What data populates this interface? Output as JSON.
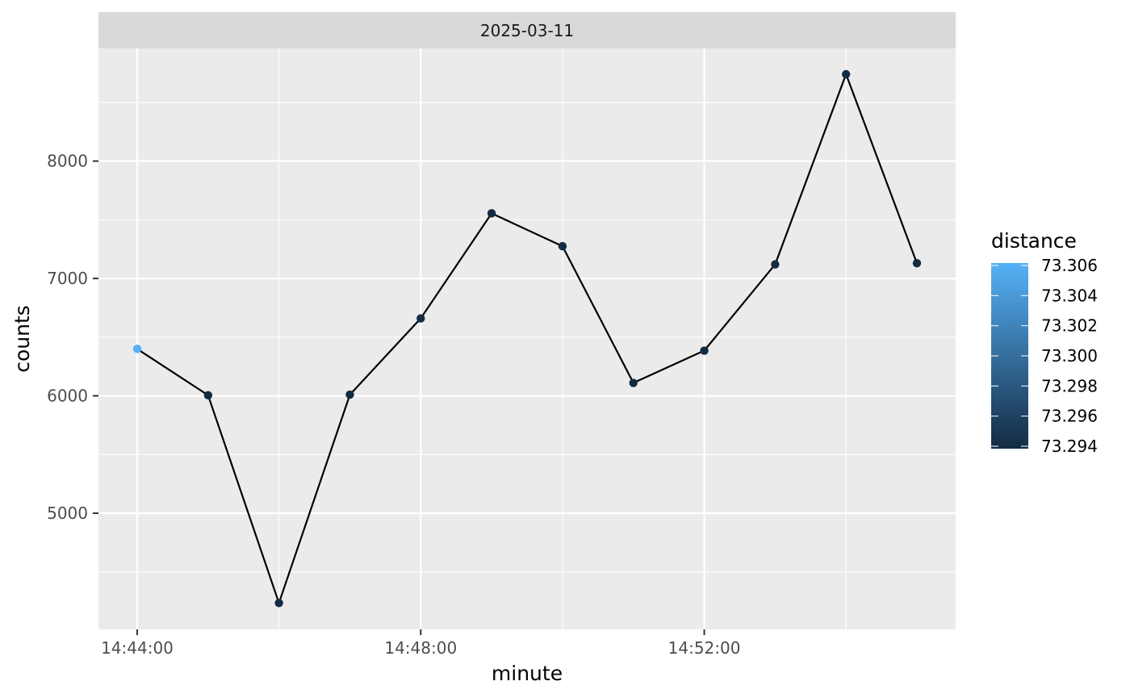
{
  "chart_data": {
    "type": "line",
    "facet_label": "2025-03-11",
    "xlabel": "minute",
    "ylabel": "counts",
    "x": [
      "14:44:00",
      "14:45:00",
      "14:46:00",
      "14:47:00",
      "14:48:00",
      "14:49:00",
      "14:50:00",
      "14:51:00",
      "14:52:00",
      "14:53:00",
      "14:54:00",
      "14:55:00"
    ],
    "series": [
      {
        "values": [
          6400,
          6005,
          4235,
          6010,
          6660,
          7555,
          7275,
          6110,
          6385,
          7120,
          8740,
          7130
        ]
      }
    ],
    "point_color_values": [
      73.306,
      73.294,
      73.294,
      73.294,
      73.294,
      73.294,
      73.294,
      73.294,
      73.294,
      73.294,
      73.294,
      73.294
    ],
    "x_ticks": [
      "14:44:00",
      "14:48:00",
      "14:52:00"
    ],
    "y_ticks": [
      5000,
      6000,
      7000,
      8000
    ],
    "ylim": [
      4010,
      8960
    ],
    "grid": true,
    "line_color": "#000000",
    "panel_background": "#EBEBEB",
    "strip_background": "#D9D9D9",
    "legend": {
      "title": "distance",
      "position": "right",
      "type": "colorbar",
      "low_color": "#132B43",
      "high_color": "#56B1F7",
      "range": [
        73.294,
        73.306
      ],
      "labels": [
        "73.306",
        "73.304",
        "73.302",
        "73.300",
        "73.298",
        "73.296",
        "73.294"
      ]
    }
  }
}
